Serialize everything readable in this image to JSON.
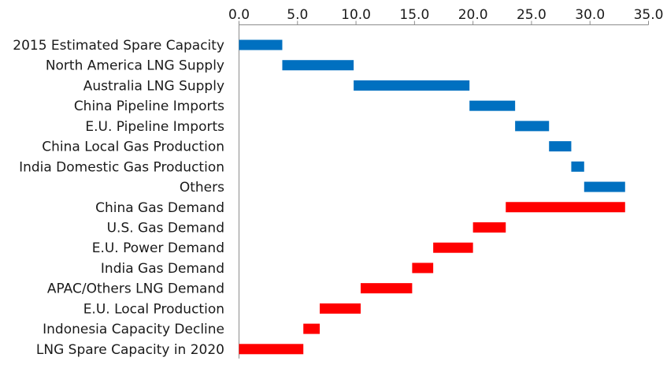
{
  "chart_data": {
    "type": "bar",
    "orientation": "horizontal-floating",
    "title": "",
    "xlabel": "",
    "ylabel": "",
    "xlim": [
      0,
      35
    ],
    "ticks": [
      "0.0",
      "5.0",
      "10.0",
      "15.0",
      "20.0",
      "25.0",
      "30.0",
      "35.0"
    ],
    "tick_values": [
      0,
      5,
      10,
      15,
      20,
      25,
      30,
      35
    ],
    "axis_position": "top",
    "grid": false,
    "colors": {
      "supply": "#0070c0",
      "demand": "#ff0000",
      "axis": "#8c8c8c",
      "text": "#1a1a1a"
    },
    "categories": [
      "2015 Estimated Spare Capacity",
      "North America LNG Supply",
      "Australia LNG Supply",
      "China Pipeline Imports",
      "E.U. Pipeline Imports",
      "China Local Gas Production",
      "India Domestic Gas Production",
      "Others",
      "China Gas Demand",
      "U.S. Gas Demand",
      "E.U. Power Demand",
      "India Gas Demand",
      "APAC/Others LNG Demand",
      "E.U. Local Production",
      "Indonesia Capacity Decline",
      "LNG Spare Capacity in 2020"
    ],
    "bars": [
      {
        "start": 0.0,
        "end": 3.7,
        "group": "supply"
      },
      {
        "start": 3.7,
        "end": 9.8,
        "group": "supply"
      },
      {
        "start": 9.8,
        "end": 19.7,
        "group": "supply"
      },
      {
        "start": 19.7,
        "end": 23.6,
        "group": "supply"
      },
      {
        "start": 23.6,
        "end": 26.5,
        "group": "supply"
      },
      {
        "start": 26.5,
        "end": 28.4,
        "group": "supply"
      },
      {
        "start": 28.4,
        "end": 29.5,
        "group": "supply"
      },
      {
        "start": 29.5,
        "end": 33.0,
        "group": "supply"
      },
      {
        "start": 22.8,
        "end": 33.0,
        "group": "demand"
      },
      {
        "start": 20.0,
        "end": 22.8,
        "group": "demand"
      },
      {
        "start": 16.6,
        "end": 20.0,
        "group": "demand"
      },
      {
        "start": 14.8,
        "end": 16.6,
        "group": "demand"
      },
      {
        "start": 10.4,
        "end": 14.8,
        "group": "demand"
      },
      {
        "start": 6.9,
        "end": 10.4,
        "group": "demand"
      },
      {
        "start": 5.5,
        "end": 6.9,
        "group": "demand"
      },
      {
        "start": 0.0,
        "end": 5.5,
        "group": "demand"
      }
    ]
  }
}
